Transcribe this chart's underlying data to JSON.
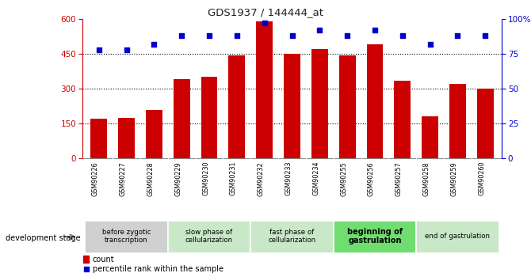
{
  "title": "GDS1937 / 144444_at",
  "samples": [
    "GSM90226",
    "GSM90227",
    "GSM90228",
    "GSM90229",
    "GSM90230",
    "GSM90231",
    "GSM90232",
    "GSM90233",
    "GSM90234",
    "GSM90255",
    "GSM90256",
    "GSM90257",
    "GSM90258",
    "GSM90259",
    "GSM90260"
  ],
  "counts": [
    170,
    175,
    210,
    340,
    350,
    445,
    590,
    450,
    470,
    445,
    490,
    335,
    180,
    320,
    300
  ],
  "percentiles": [
    78,
    78,
    82,
    88,
    88,
    88,
    97,
    88,
    92,
    88,
    92,
    88,
    82,
    88,
    88
  ],
  "bar_color": "#cc0000",
  "dot_color": "#0000cc",
  "left_ylim": [
    0,
    600
  ],
  "right_ylim": [
    0,
    100
  ],
  "left_yticks": [
    0,
    150,
    300,
    450,
    600
  ],
  "right_yticks": [
    0,
    25,
    50,
    75,
    100
  ],
  "right_yticklabels": [
    "0",
    "25",
    "50",
    "75",
    "100%"
  ],
  "stage_groups": [
    {
      "label": "before zygotic\ntranscription",
      "start": 0,
      "end": 3,
      "color": "#d0d0d0"
    },
    {
      "label": "slow phase of\ncellularization",
      "start": 3,
      "end": 6,
      "color": "#c8e8c8"
    },
    {
      "label": "fast phase of\ncellularization",
      "start": 6,
      "end": 9,
      "color": "#c8e8c8"
    },
    {
      "label": "beginning of\ngastrulation",
      "start": 9,
      "end": 12,
      "color": "#70dd70"
    },
    {
      "label": "end of gastrulation",
      "start": 12,
      "end": 15,
      "color": "#c8e8c8"
    }
  ],
  "dev_stage_label": "development stage",
  "legend_count_label": "count",
  "legend_percentile_label": "percentile rank within the sample",
  "grid_color": "#000000",
  "background_color": "#ffffff",
  "tick_label_color_left": "#cc0000",
  "tick_label_color_right": "#0000cc",
  "gridlines": [
    150,
    300,
    450
  ],
  "bar_width": 0.6,
  "xlim": [
    -0.6,
    14.6
  ]
}
